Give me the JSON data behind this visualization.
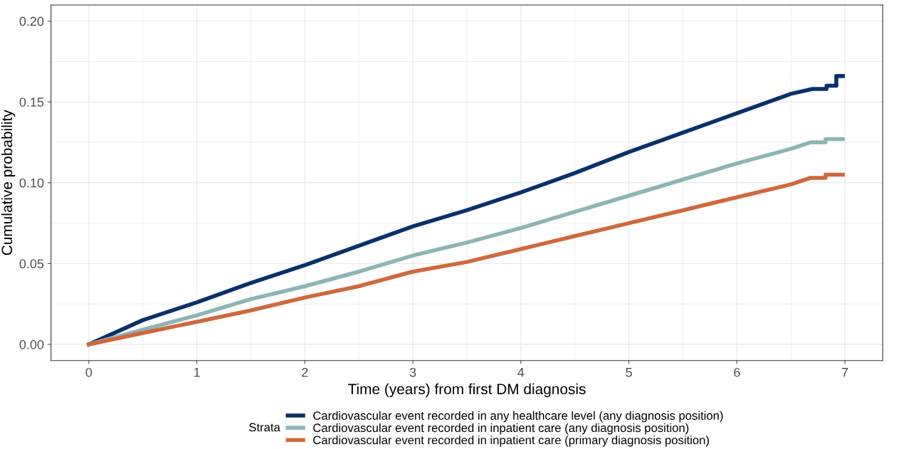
{
  "chart_data": {
    "type": "line",
    "xlabel": "Time (years) from first DM diagnosis",
    "ylabel": "Cumulative probability",
    "legend_title": "Strata",
    "legend": "bottom",
    "grid": true,
    "xlim": [
      -0.35,
      7.35
    ],
    "ylim": [
      -0.01,
      0.21
    ],
    "xticks": [
      0,
      1,
      2,
      3,
      4,
      5,
      6,
      7
    ],
    "yticks": [
      {
        "value": 0,
        "label": "0.00"
      },
      {
        "value": 0.05,
        "label": "0.05"
      },
      {
        "value": 0.1,
        "label": "0.10"
      },
      {
        "value": 0.15,
        "label": "0.15"
      },
      {
        "value": 0.2,
        "label": "0.20"
      }
    ],
    "series": [
      {
        "name": "Cardiovascular event recorded in any healthcare level (any diagnosis position)",
        "color": "#08306b",
        "x": [
          0,
          0.5,
          1,
          1.5,
          2,
          2.5,
          3,
          3.5,
          4,
          4.5,
          5,
          5.5,
          6,
          6.5,
          6.7,
          6.83,
          6.83,
          6.92,
          6.92,
          6.98
        ],
        "values": [
          0,
          0.015,
          0.026,
          0.038,
          0.049,
          0.061,
          0.073,
          0.083,
          0.094,
          0.106,
          0.119,
          0.131,
          0.143,
          0.155,
          0.158,
          0.158,
          0.16,
          0.16,
          0.166,
          0.166
        ]
      },
      {
        "name": "Cardiovascular event recorded in inpatient care (any diagnosis position)",
        "color": "#8db4b4",
        "x": [
          0,
          0.5,
          1,
          1.5,
          2,
          2.5,
          3,
          3.5,
          4,
          4.5,
          5,
          5.5,
          6,
          6.5,
          6.68,
          6.82,
          6.82,
          6.98
        ],
        "values": [
          0,
          0.009,
          0.018,
          0.028,
          0.036,
          0.045,
          0.055,
          0.063,
          0.072,
          0.082,
          0.092,
          0.102,
          0.112,
          0.121,
          0.125,
          0.125,
          0.127,
          0.127
        ]
      },
      {
        "name": "Cardiovascular event recorded in inpatient care (primary diagnosis position)",
        "color": "#d0683a",
        "x": [
          0,
          0.5,
          1,
          1.5,
          2,
          2.5,
          3,
          3.5,
          4,
          4.5,
          5,
          5.5,
          6,
          6.5,
          6.68,
          6.82,
          6.82,
          6.98
        ],
        "values": [
          0,
          0.007,
          0.014,
          0.021,
          0.029,
          0.036,
          0.045,
          0.051,
          0.059,
          0.067,
          0.075,
          0.083,
          0.091,
          0.099,
          0.103,
          0.103,
          0.105,
          0.105
        ]
      }
    ]
  }
}
